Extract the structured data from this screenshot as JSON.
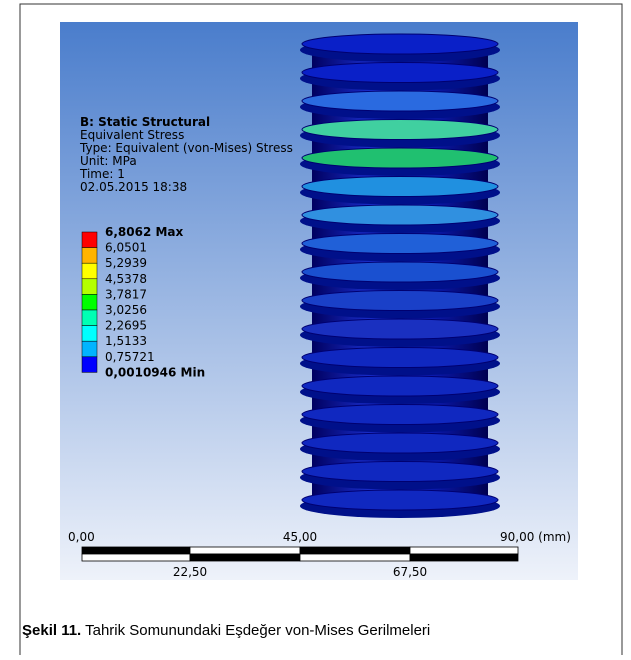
{
  "header": {
    "title": "B: Static Structural",
    "lines": [
      "Equivalent Stress",
      "Type: Equivalent (von-Mises) Stress",
      "Unit: MPa",
      "Time: 1",
      "02.05.2015 18:38"
    ]
  },
  "legend": {
    "labels": [
      "6,8062 Max",
      "6,0501",
      "5,2939",
      "4,5378",
      "3,7817",
      "3,0256",
      "2,2695",
      "1,5133",
      "0,75721",
      "0,0010946 Min"
    ],
    "colors": [
      "#ff0000",
      "#ffb400",
      "#ffff00",
      "#b4ff00",
      "#00ff00",
      "#00ffb4",
      "#00ffff",
      "#00b4ff",
      "#0000ff"
    ]
  },
  "scale": {
    "top": [
      "0,00",
      "45,00",
      "90,00 (mm)"
    ],
    "bottom": [
      "22,50",
      "67,50"
    ]
  },
  "caption": {
    "label": "Şekil 11.",
    "text": " Tahrik Somunundaki Eşdeğer von-Mises Gerilmeleri"
  }
}
